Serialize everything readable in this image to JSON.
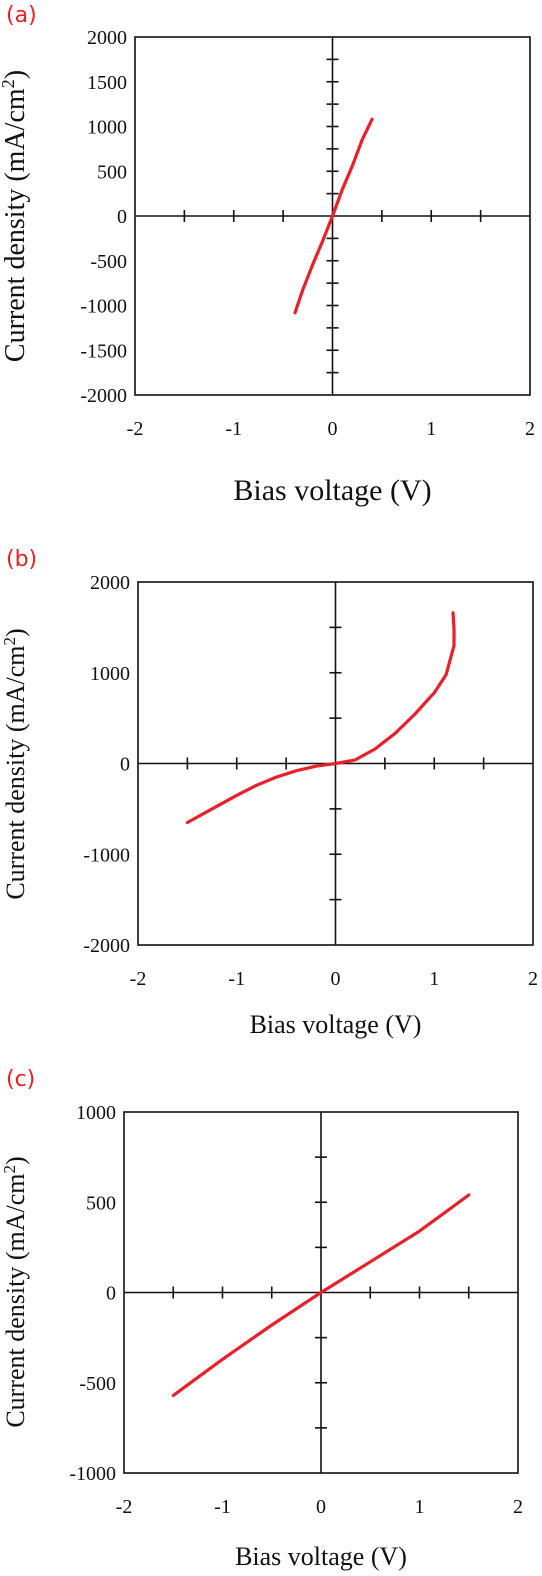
{
  "figure": {
    "panel_labels": [
      "(a)",
      "(b)",
      "(c)"
    ],
    "curve_color": "#e8202a"
  },
  "chart_data": [
    {
      "type": "line",
      "panel": "(a)",
      "title": "",
      "xlabel": "Bias voltage (V)",
      "ylabel": "Current density (mA/cm²)",
      "xlim": [
        -2,
        2
      ],
      "ylim": [
        -2000,
        2000
      ],
      "x_ticks": [
        -2,
        -1,
        0,
        1,
        2
      ],
      "y_ticks": [
        -2000,
        -1500,
        -1000,
        -500,
        0,
        500,
        1000,
        1500,
        2000
      ],
      "grid": false,
      "series": [
        {
          "x": [
            -0.38,
            -0.3,
            -0.2,
            -0.1,
            0.0,
            0.1,
            0.2,
            0.3,
            0.4
          ],
          "y": [
            -1080,
            -820,
            -540,
            -280,
            0,
            300,
            560,
            850,
            1080
          ]
        }
      ]
    },
    {
      "type": "line",
      "panel": "(b)",
      "title": "",
      "xlabel": "Bias voltage (V)",
      "ylabel": "Current density (mA/cm²)",
      "xlim": [
        -2,
        2
      ],
      "ylim": [
        -2000,
        2000
      ],
      "x_ticks": [
        -2,
        -1,
        0,
        1,
        2
      ],
      "y_ticks": [
        -2000,
        -1000,
        0,
        1000,
        2000
      ],
      "grid": false,
      "series": [
        {
          "x": [
            -1.5,
            -1.2,
            -1.0,
            -0.8,
            -0.6,
            -0.4,
            -0.2,
            0.0,
            0.2,
            0.4,
            0.6,
            0.8,
            1.0,
            1.12,
            1.2,
            1.2,
            1.19
          ],
          "y": [
            -650,
            -470,
            -350,
            -240,
            -150,
            -80,
            -30,
            0,
            40,
            160,
            330,
            540,
            780,
            980,
            1300,
            1480,
            1660
          ]
        }
      ]
    },
    {
      "type": "line",
      "panel": "(c)",
      "title": "",
      "xlabel": "Bias voltage (V)",
      "ylabel": "Current density (mA/cm²)",
      "xlim": [
        -2,
        2
      ],
      "ylim": [
        -1000,
        1000
      ],
      "x_ticks": [
        -2,
        -1,
        0,
        1,
        2
      ],
      "y_ticks": [
        -1000,
        -500,
        0,
        500,
        1000
      ],
      "grid": false,
      "series": [
        {
          "x": [
            -1.5,
            -1.0,
            -0.5,
            0.0,
            0.5,
            1.0,
            1.2,
            1.5
          ],
          "y": [
            -570,
            -370,
            -180,
            0,
            170,
            340,
            420,
            540
          ]
        }
      ]
    }
  ]
}
